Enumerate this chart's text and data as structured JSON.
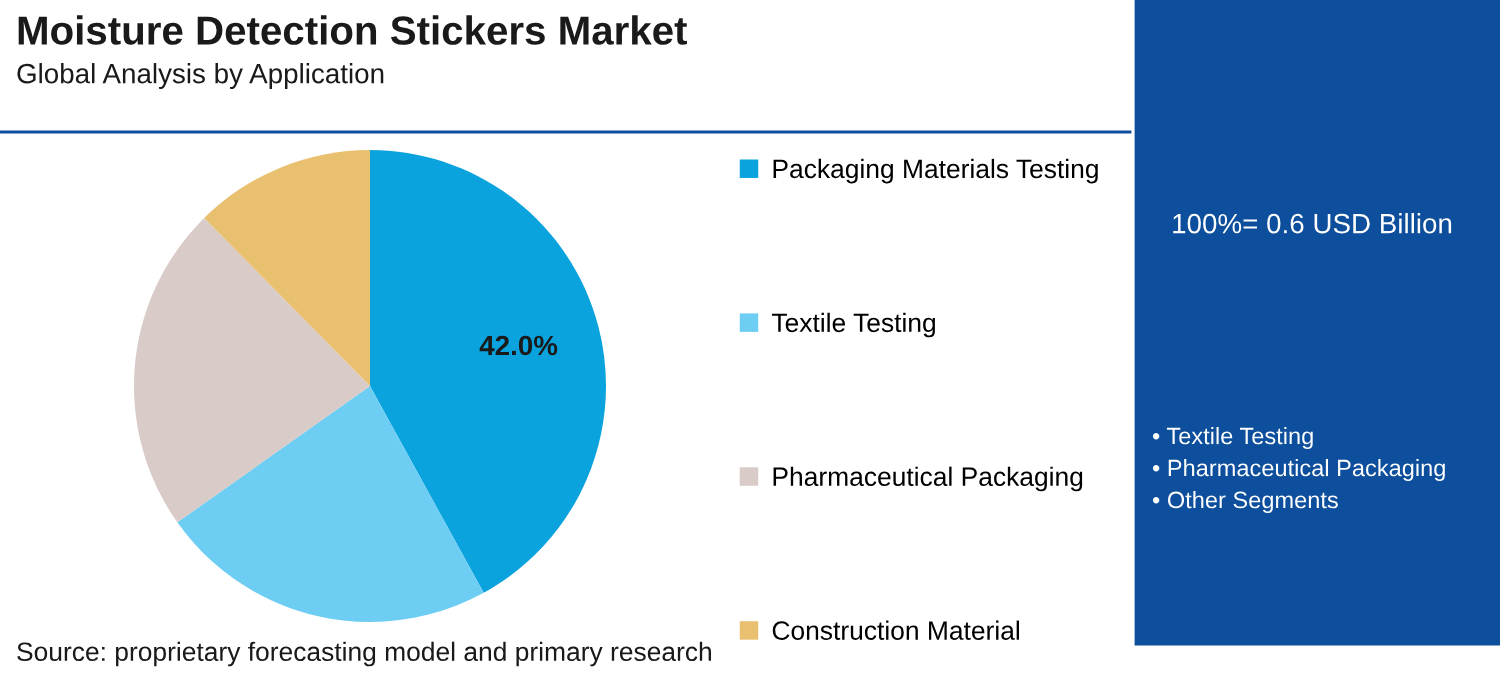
{
  "chart_data": {
    "type": "pie",
    "title": "Moisture Detection Stickers Market",
    "subtitle": "Global Analysis by Application",
    "categories": [
      "Packaging Materials Testing",
      "Textile Testing",
      "Pharmaceutical Packaging",
      "Construction Material"
    ],
    "values": [
      42.0,
      23.2,
      22.4,
      12.4
    ],
    "colors": [
      "#0aa3de",
      "#6dcdf3",
      "#d8cbc8",
      "#e9c06f"
    ],
    "value_labels": [
      "42.0%",
      null,
      null,
      null
    ],
    "legend": "right",
    "annotations": [
      "Source: proprietary forecasting model and primary research",
      "100%= 0.6 USD Billion",
      "• Textile Testing",
      "• Pharmaceutical Packaging",
      "• Other Segments"
    ]
  }
}
